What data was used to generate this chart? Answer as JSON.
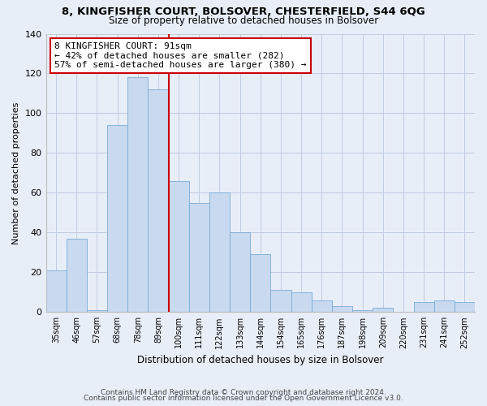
{
  "title1": "8, KINGFISHER COURT, BOLSOVER, CHESTERFIELD, S44 6QG",
  "title2": "Size of property relative to detached houses in Bolsover",
  "xlabel": "Distribution of detached houses by size in Bolsover",
  "ylabel": "Number of detached properties",
  "bin_labels": [
    "35sqm",
    "46sqm",
    "57sqm",
    "68sqm",
    "78sqm",
    "89sqm",
    "100sqm",
    "111sqm",
    "122sqm",
    "133sqm",
    "144sqm",
    "154sqm",
    "165sqm",
    "176sqm",
    "187sqm",
    "198sqm",
    "209sqm",
    "220sqm",
    "231sqm",
    "241sqm",
    "252sqm"
  ],
  "bar_values": [
    21,
    37,
    1,
    94,
    118,
    112,
    66,
    55,
    60,
    40,
    29,
    11,
    10,
    6,
    3,
    1,
    2,
    0,
    5,
    6,
    5
  ],
  "bar_color": "#c8d9f0",
  "bar_edge_color": "#7aaad4",
  "vline_x": 5.5,
  "vline_color": "#cc0000",
  "annotation_text": "8 KINGFISHER COURT: 91sqm\n← 42% of detached houses are smaller (282)\n57% of semi-detached houses are larger (380) →",
  "annotation_box_color": "white",
  "annotation_box_edge": "#cc0000",
  "ylim": [
    0,
    140
  ],
  "yticks": [
    0,
    20,
    40,
    60,
    80,
    100,
    120,
    140
  ],
  "footer_line1": "Contains HM Land Registry data © Crown copyright and database right 2024.",
  "footer_line2": "Contains public sector information licensed under the Open Government Licence v3.0.",
  "bg_color": "#e8eef8"
}
